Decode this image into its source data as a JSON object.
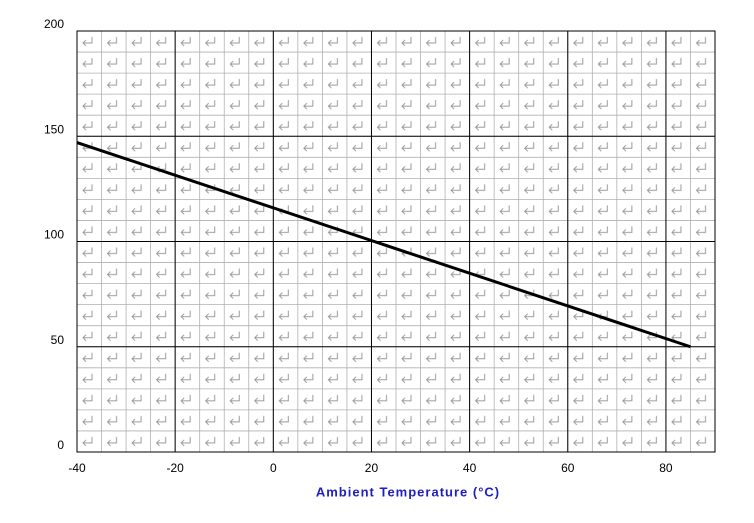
{
  "chart_data": {
    "type": "line",
    "x": [
      -40,
      85
    ],
    "series": [
      {
        "color": "#000000",
        "values": [
          147,
          50
        ]
      }
    ],
    "xlabel": "Ambient Temperature (°C)",
    "xlim": [
      -40,
      90
    ],
    "xticks": [
      -40,
      -20,
      0,
      20,
      40,
      60,
      80
    ],
    "ylim": [
      0,
      200
    ],
    "yticks": [
      0,
      50,
      100,
      150,
      200
    ],
    "grid": true
  }
}
